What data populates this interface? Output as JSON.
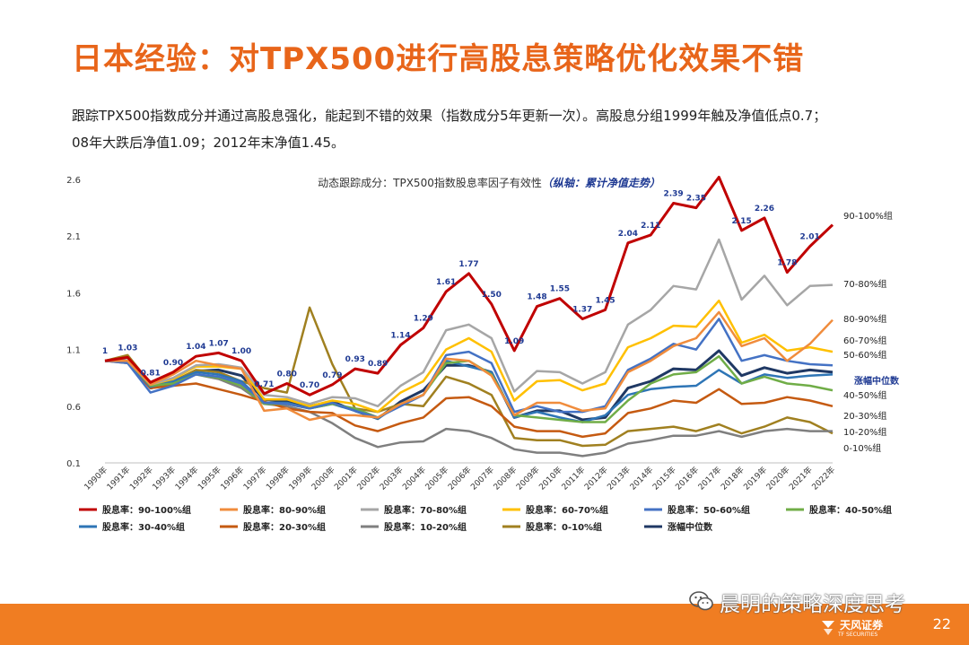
{
  "page": {
    "title": "日本经验：对TPX500进行高股息策略优化效果不错",
    "desc_line1": "跟踪TPX500指数成分并通过高股息强化，能起到不错的效果（指数成分5年更新一次）。高股息分组1999年触及净值低点0.7；",
    "desc_line2": "08年大跌后净值1.09；2012年末净值1.45。",
    "page_number": "22",
    "watermark": "晨明的策略深度思考",
    "logo_text": "天风证券",
    "logo_sub": "TF SECURITIES"
  },
  "chart_data": {
    "type": "line",
    "title": "动态跟踪成分：TPX500指数股息率因子有效性",
    "title_note": "（纵轴：累计净值走势）",
    "categories": [
      "1990年",
      "1991年",
      "1992年",
      "1993年",
      "1994年",
      "1995年",
      "1996年",
      "1997年",
      "1998年",
      "1999年",
      "2000年",
      "2001年",
      "2002年",
      "2003年",
      "2004年",
      "2005年",
      "2006年",
      "2007年",
      "2008年",
      "2009年",
      "2010年",
      "2011年",
      "2012年",
      "2013年",
      "2014年",
      "2015年",
      "2016年",
      "2017年",
      "2018年",
      "2019年",
      "2020年",
      "2021年",
      "2022年"
    ],
    "y_ticks": [
      0.1,
      0.6,
      1.1,
      1.6,
      2.1,
      2.6
    ],
    "ylim": [
      0.1,
      2.6
    ],
    "grid": false,
    "legend_position": "bottom",
    "series": [
      {
        "name": "股息率：90-100%组",
        "end_label": "90-100%组",
        "color": "#c00000",
        "width": 3,
        "values": [
          1.0,
          1.03,
          0.81,
          0.9,
          1.04,
          1.07,
          1.0,
          0.71,
          0.8,
          0.7,
          0.79,
          0.93,
          0.89,
          1.14,
          1.29,
          1.61,
          1.77,
          1.5,
          1.09,
          1.48,
          1.55,
          1.37,
          1.45,
          2.04,
          2.11,
          2.39,
          2.35,
          2.62,
          2.15,
          2.26,
          1.78,
          2.01,
          2.2
        ],
        "data_labels": [
          "1",
          "1.03",
          "0.81",
          "0.90",
          "1.04",
          "1.07",
          "1.00",
          "0.71",
          "0.80",
          "0.70",
          "0.79",
          "0.93",
          "0.89",
          "1.14",
          "1.29",
          "1.61",
          "1.77",
          "1.50",
          "1.09",
          "1.48",
          "1.55",
          "1.37",
          "1.45",
          "2.04",
          "2.11",
          "2.39",
          "2.35",
          "",
          "2.15",
          "2.26",
          "1.78",
          "2.01",
          ""
        ]
      },
      {
        "name": "股息率：80-90%组",
        "end_label": "80-90%组",
        "color": "#f08c3c",
        "width": 2.5,
        "values": [
          1.0,
          1.0,
          0.79,
          0.88,
          1.0,
          0.96,
          0.93,
          0.56,
          0.58,
          0.48,
          0.52,
          0.52,
          0.5,
          0.62,
          0.7,
          1.02,
          1.0,
          0.87,
          0.52,
          0.63,
          0.63,
          0.56,
          0.58,
          0.9,
          1.0,
          1.13,
          1.2,
          1.43,
          1.13,
          1.2,
          1.0,
          1.15,
          1.36
        ]
      },
      {
        "name": "股息率：70-80%组",
        "end_label": "70-80%组",
        "color": "#a6a6a6",
        "width": 2.5,
        "values": [
          1.0,
          1.0,
          0.79,
          0.85,
          0.96,
          0.97,
          0.94,
          0.7,
          0.68,
          0.62,
          0.68,
          0.67,
          0.6,
          0.78,
          0.9,
          1.27,
          1.32,
          1.2,
          0.73,
          0.91,
          0.9,
          0.8,
          0.9,
          1.32,
          1.45,
          1.66,
          1.63,
          2.07,
          1.54,
          1.75,
          1.49,
          1.66,
          1.67
        ]
      },
      {
        "name": "股息率：60-70%组",
        "end_label": "60-70%组",
        "color": "#ffc000",
        "width": 2.5,
        "values": [
          1.0,
          1.0,
          0.79,
          0.84,
          0.95,
          0.95,
          0.93,
          0.66,
          0.66,
          0.6,
          0.65,
          0.62,
          0.55,
          0.72,
          0.82,
          1.1,
          1.2,
          1.08,
          0.65,
          0.82,
          0.83,
          0.74,
          0.8,
          1.12,
          1.2,
          1.31,
          1.3,
          1.53,
          1.16,
          1.23,
          1.09,
          1.12,
          1.08
        ]
      },
      {
        "name": "股息率：50-60%组",
        "end_label": "50-60%组",
        "color": "#4472c4",
        "width": 2.5,
        "values": [
          1.0,
          0.98,
          0.72,
          0.78,
          0.88,
          0.86,
          0.8,
          0.63,
          0.62,
          0.58,
          0.63,
          0.56,
          0.5,
          0.6,
          0.7,
          1.05,
          1.08,
          0.98,
          0.55,
          0.6,
          0.55,
          0.55,
          0.6,
          0.92,
          1.02,
          1.15,
          1.1,
          1.37,
          1.0,
          1.05,
          1.0,
          0.97,
          0.96
        ]
      },
      {
        "name": "股息率：40-50%组",
        "end_label": "40-50%组",
        "color": "#70ad47",
        "width": 2.5,
        "values": [
          1.0,
          1.0,
          0.78,
          0.8,
          0.88,
          0.85,
          0.78,
          0.62,
          0.62,
          0.58,
          0.62,
          0.58,
          0.5,
          0.62,
          0.7,
          0.98,
          1.0,
          0.88,
          0.52,
          0.5,
          0.48,
          0.46,
          0.46,
          0.65,
          0.8,
          0.88,
          0.9,
          1.04,
          0.8,
          0.86,
          0.8,
          0.78,
          0.74
        ]
      },
      {
        "name": "股息率：30-40%组",
        "end_label": "",
        "color": "#2e75b6",
        "width": 2.5,
        "values": [
          1.0,
          0.99,
          0.77,
          0.82,
          0.9,
          0.88,
          0.82,
          0.63,
          0.63,
          0.58,
          0.62,
          0.56,
          0.49,
          0.62,
          0.7,
          1.0,
          0.95,
          0.9,
          0.5,
          0.55,
          0.5,
          0.46,
          0.52,
          0.7,
          0.75,
          0.77,
          0.78,
          0.92,
          0.8,
          0.88,
          0.85,
          0.87,
          0.88
        ]
      },
      {
        "name": "股息率：20-30%组",
        "end_label": "20-30%组",
        "color": "#c55a11",
        "width": 2.5,
        "values": [
          1.0,
          0.98,
          0.76,
          0.78,
          0.8,
          0.75,
          0.7,
          0.64,
          0.58,
          0.55,
          0.54,
          0.43,
          0.38,
          0.45,
          0.5,
          0.67,
          0.68,
          0.6,
          0.42,
          0.38,
          0.38,
          0.33,
          0.36,
          0.54,
          0.58,
          0.65,
          0.63,
          0.75,
          0.62,
          0.63,
          0.68,
          0.65,
          0.6
        ]
      },
      {
        "name": "股息率：10-20%组",
        "end_label": "10-20%组",
        "color": "#7f7f7f",
        "width": 2.5,
        "values": [
          1.0,
          1.0,
          0.78,
          0.8,
          0.88,
          0.84,
          0.76,
          0.62,
          0.6,
          0.55,
          0.45,
          0.32,
          0.24,
          0.28,
          0.29,
          0.4,
          0.38,
          0.32,
          0.22,
          0.19,
          0.19,
          0.16,
          0.19,
          0.27,
          0.3,
          0.34,
          0.34,
          0.38,
          0.33,
          0.38,
          0.4,
          0.38,
          0.38
        ]
      },
      {
        "name": "股息率：0-10%组",
        "end_label": "0-10%组",
        "color": "#a08020",
        "width": 2.5,
        "values": [
          1.0,
          1.05,
          0.8,
          0.82,
          0.92,
          0.9,
          0.82,
          0.76,
          0.72,
          1.47,
          0.97,
          0.58,
          0.55,
          0.62,
          0.6,
          0.86,
          0.8,
          0.7,
          0.32,
          0.3,
          0.3,
          0.25,
          0.26,
          0.38,
          0.4,
          0.42,
          0.38,
          0.44,
          0.36,
          0.42,
          0.5,
          0.46,
          0.36
        ]
      },
      {
        "name": "涨幅中位数",
        "end_label": "涨幅中位数",
        "color": "#1f3864",
        "width": 3,
        "values": [
          1.0,
          1.0,
          0.76,
          0.8,
          0.91,
          0.92,
          0.87,
          0.66,
          0.64,
          0.6,
          0.64,
          0.56,
          0.49,
          0.64,
          0.74,
          0.96,
          0.96,
          0.9,
          0.5,
          0.56,
          0.56,
          0.48,
          0.5,
          0.76,
          0.82,
          0.93,
          0.92,
          1.09,
          0.87,
          0.94,
          0.89,
          0.92,
          0.9
        ]
      }
    ]
  }
}
